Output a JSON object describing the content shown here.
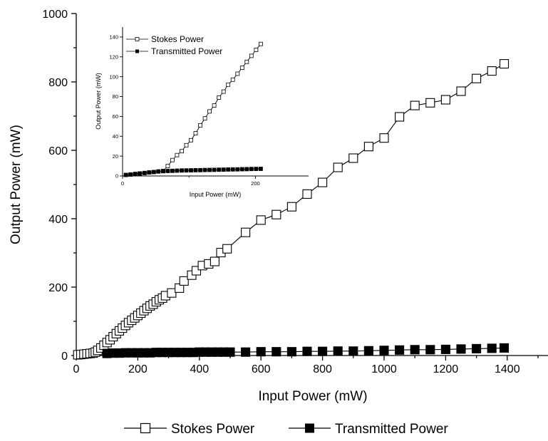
{
  "chart_data": [
    {
      "type": "line",
      "xlabel": "Input Power (mW)",
      "ylabel": "Output Power (mW)",
      "xlim": [
        0,
        1500
      ],
      "ylim": [
        0,
        1000
      ],
      "xticks": [
        0,
        200,
        400,
        600,
        800,
        1000,
        1200,
        1400
      ],
      "yticks": [
        0,
        200,
        400,
        600,
        800,
        1000
      ],
      "legend_position": "bottom",
      "series": [
        {
          "name": "Stokes Power",
          "marker": "open-square",
          "points": [
            [
              5,
              2
            ],
            [
              15,
              3
            ],
            [
              25,
              4
            ],
            [
              35,
              5
            ],
            [
              45,
              6
            ],
            [
              55,
              7
            ],
            [
              62,
              10
            ],
            [
              70,
              15
            ],
            [
              80,
              22
            ],
            [
              90,
              30
            ],
            [
              100,
              38
            ],
            [
              110,
              46
            ],
            [
              120,
              55
            ],
            [
              130,
              64
            ],
            [
              140,
              72
            ],
            [
              150,
              80
            ],
            [
              160,
              88
            ],
            [
              170,
              96
            ],
            [
              180,
              103
            ],
            [
              190,
              110
            ],
            [
              200,
              117
            ],
            [
              210,
              124
            ],
            [
              220,
              131
            ],
            [
              230,
              138
            ],
            [
              240,
              145
            ],
            [
              250,
              150
            ],
            [
              260,
              157
            ],
            [
              270,
              163
            ],
            [
              280,
              168
            ],
            [
              290,
              175
            ],
            [
              310,
              183
            ],
            [
              335,
              197
            ],
            [
              350,
              218
            ],
            [
              375,
              235
            ],
            [
              390,
              248
            ],
            [
              410,
              263
            ],
            [
              430,
              268
            ],
            [
              450,
              275
            ],
            [
              470,
              301
            ],
            [
              490,
              312
            ],
            [
              550,
              360
            ],
            [
              600,
              396
            ],
            [
              650,
              412
            ],
            [
              700,
              435
            ],
            [
              750,
              472
            ],
            [
              800,
              506
            ],
            [
              850,
              550
            ],
            [
              900,
              577
            ],
            [
              950,
              611
            ],
            [
              1000,
              636
            ],
            [
              1050,
              698
            ],
            [
              1100,
              731
            ],
            [
              1150,
              739
            ],
            [
              1200,
              748
            ],
            [
              1250,
              773
            ],
            [
              1300,
              810
            ],
            [
              1350,
              832
            ],
            [
              1390,
              853
            ]
          ]
        },
        {
          "name": "Transmitted Power",
          "marker": "filled-square",
          "points": [
            [
              100,
              6
            ],
            [
              120,
              7
            ],
            [
              140,
              7
            ],
            [
              160,
              8
            ],
            [
              180,
              8
            ],
            [
              200,
              8
            ],
            [
              220,
              8
            ],
            [
              240,
              8
            ],
            [
              260,
              9
            ],
            [
              280,
              9
            ],
            [
              300,
              9
            ],
            [
              320,
              9
            ],
            [
              340,
              9
            ],
            [
              360,
              9
            ],
            [
              380,
              9
            ],
            [
              400,
              10
            ],
            [
              420,
              10
            ],
            [
              440,
              10
            ],
            [
              460,
              10
            ],
            [
              480,
              10
            ],
            [
              500,
              10
            ],
            [
              550,
              10
            ],
            [
              600,
              11
            ],
            [
              650,
              11
            ],
            [
              700,
              11
            ],
            [
              750,
              12
            ],
            [
              800,
              12
            ],
            [
              850,
              13
            ],
            [
              900,
              13
            ],
            [
              950,
              14
            ],
            [
              1000,
              15
            ],
            [
              1050,
              16
            ],
            [
              1100,
              17
            ],
            [
              1150,
              17
            ],
            [
              1200,
              18
            ],
            [
              1250,
              19
            ],
            [
              1300,
              20
            ],
            [
              1350,
              21
            ],
            [
              1390,
              22
            ]
          ]
        }
      ]
    },
    {
      "type": "line",
      "xlabel": "Input Power (mW)",
      "ylabel": "Output Power (mW)",
      "xlim": [
        0,
        280
      ],
      "ylim": [
        0,
        150
      ],
      "xticks": [
        0,
        200
      ],
      "yticks": [
        0,
        20,
        40,
        60,
        80,
        100,
        120,
        140
      ],
      "legend_position": "top-left",
      "series": [
        {
          "name": "Stokes Power",
          "marker": "open-square",
          "points": [
            [
              5,
              1
            ],
            [
              12,
              1.5
            ],
            [
              19,
              2
            ],
            [
              26,
              2.5
            ],
            [
              33,
              3
            ],
            [
              40,
              3.5
            ],
            [
              47,
              4
            ],
            [
              54,
              4.5
            ],
            [
              61,
              5
            ],
            [
              68,
              10
            ],
            [
              75,
              16
            ],
            [
              82,
              21
            ],
            [
              89,
              25
            ],
            [
              96,
              31
            ],
            [
              103,
              36
            ],
            [
              110,
              43
            ],
            [
              117,
              51
            ],
            [
              124,
              58
            ],
            [
              131,
              65
            ],
            [
              138,
              71
            ],
            [
              145,
              79
            ],
            [
              152,
              85
            ],
            [
              159,
              92
            ],
            [
              166,
              97
            ],
            [
              173,
              103
            ],
            [
              180,
              109
            ],
            [
              187,
              115
            ],
            [
              194,
              121
            ],
            [
              201,
              127
            ],
            [
              208,
              133
            ]
          ]
        },
        {
          "name": "Transmitted Power",
          "marker": "filled-square",
          "points": [
            [
              5,
              1
            ],
            [
              12,
              1.5
            ],
            [
              19,
              2
            ],
            [
              26,
              2.5
            ],
            [
              33,
              3
            ],
            [
              40,
              3.5
            ],
            [
              47,
              4
            ],
            [
              54,
              4.5
            ],
            [
              61,
              4.8
            ],
            [
              68,
              5
            ],
            [
              75,
              5.2
            ],
            [
              82,
              5.4
            ],
            [
              89,
              5.5
            ],
            [
              96,
              5.6
            ],
            [
              103,
              5.7
            ],
            [
              110,
              5.8
            ],
            [
              117,
              5.9
            ],
            [
              124,
              6
            ],
            [
              131,
              6.1
            ],
            [
              138,
              6.2
            ],
            [
              145,
              6.3
            ],
            [
              152,
              6.4
            ],
            [
              159,
              6.5
            ],
            [
              166,
              6.6
            ],
            [
              173,
              6.7
            ],
            [
              180,
              6.8
            ],
            [
              187,
              6.9
            ],
            [
              194,
              7
            ],
            [
              201,
              7.1
            ],
            [
              208,
              7.2
            ]
          ]
        }
      ]
    }
  ]
}
